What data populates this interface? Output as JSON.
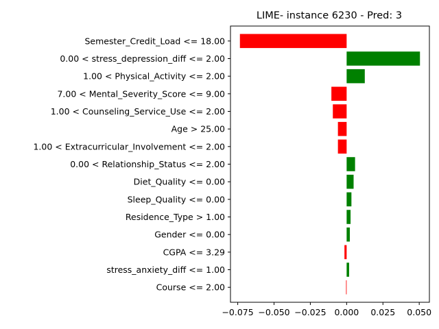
{
  "chart_data": {
    "type": "bar",
    "orientation": "horizontal",
    "title": "LIME- instance 6230 - Pred: 3",
    "xlabel": "",
    "ylabel": "",
    "xlim": [
      -0.08,
      0.057
    ],
    "xticks": [
      -0.075,
      -0.05,
      -0.025,
      0.0,
      0.025,
      0.05
    ],
    "xtick_labels": [
      "−0.075",
      "−0.050",
      "−0.025",
      "0.000",
      "0.025",
      "0.050"
    ],
    "grid": false,
    "positive_color": "#008000",
    "negative_color": "#ff0000",
    "categories": [
      "Semester_Credit_Load <= 18.00",
      "0.00 < stress_depression_diff <= 2.00",
      "1.00 < Physical_Activity <= 2.00",
      "7.00 < Mental_Severity_Score <= 9.00",
      "1.00 < Counseling_Service_Use <= 2.00",
      "Age > 25.00",
      "1.00 < Extracurricular_Involvement <= 2.00",
      "0.00 < Relationship_Status <= 2.00",
      "Diet_Quality <= 0.00",
      "Sleep_Quality <= 0.00",
      "Residence_Type > 1.00",
      "Gender <= 0.00",
      "CGPA <= 3.29",
      "stress_anxiety_diff <= 1.00",
      "Course <= 2.00"
    ],
    "values": [
      -0.0735,
      0.0505,
      0.0125,
      -0.0105,
      -0.0095,
      -0.006,
      -0.006,
      0.0058,
      0.0048,
      0.0033,
      0.0027,
      0.0022,
      -0.0015,
      0.0017,
      -0.0004
    ]
  }
}
